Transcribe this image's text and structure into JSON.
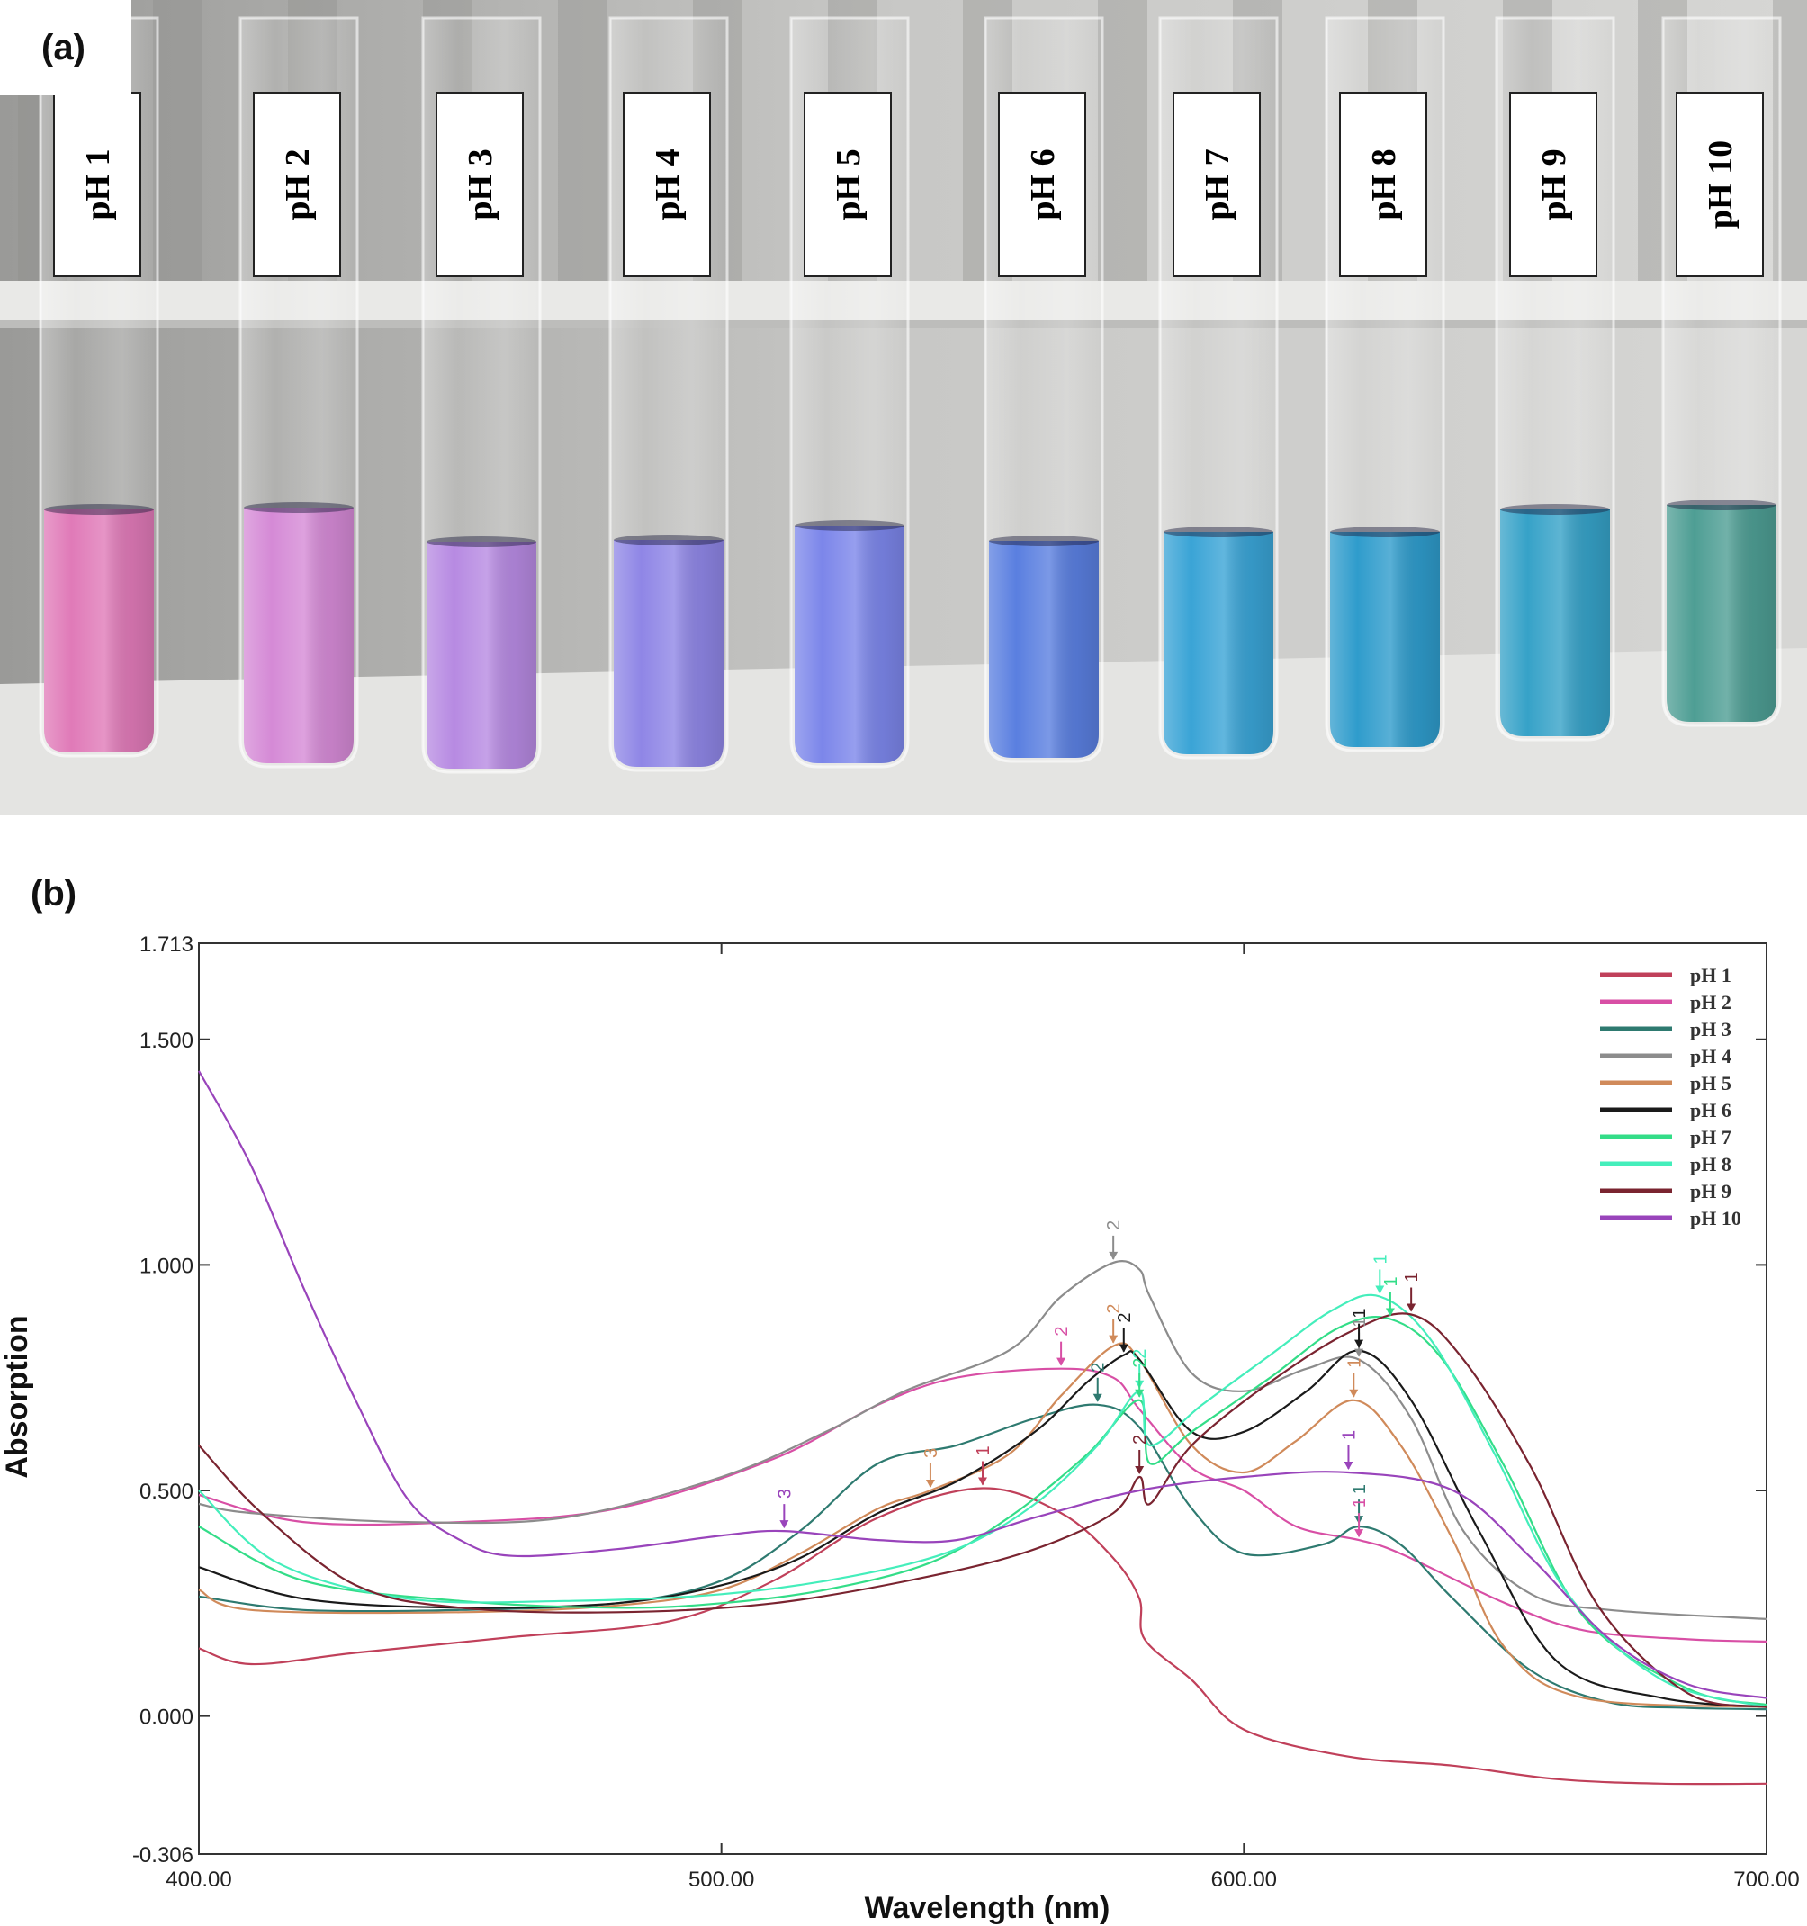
{
  "panel_a": {
    "label": "(a)",
    "tubes": [
      {
        "label": "pH 1",
        "color": "#e07ab8"
      },
      {
        "label": "pH 2",
        "color": "#d58ad6"
      },
      {
        "label": "pH 3",
        "color": "#b78ae2"
      },
      {
        "label": "pH 4",
        "color": "#8f86e6"
      },
      {
        "label": "pH 5",
        "color": "#7c86ea"
      },
      {
        "label": "pH 6",
        "color": "#5a7fe0"
      },
      {
        "label": "pH 7",
        "color": "#3aa4d6"
      },
      {
        "label": "pH 8",
        "color": "#2f9ccc"
      },
      {
        "label": "pH 9",
        "color": "#36a2c8"
      },
      {
        "label": "pH 10",
        "color": "#4e9e94"
      }
    ]
  },
  "panel_b": {
    "label": "(b)"
  },
  "chart_data": {
    "type": "line",
    "title": "",
    "xlabel": "Wavelength (nm)",
    "ylabel": "Absorption",
    "xlim": [
      400,
      700
    ],
    "ylim": [
      -0.306,
      1.713
    ],
    "xticks": [
      "400.00",
      "500.00",
      "600.00",
      "700.00"
    ],
    "xtick_values": [
      400,
      500,
      600,
      700
    ],
    "yticks": [
      "-0.306",
      "0.000",
      "0.500",
      "1.000",
      "1.500",
      "1.713"
    ],
    "ytick_values": [
      -0.306,
      0,
      0.5,
      1.0,
      1.5,
      1.713
    ],
    "legend_position": "top-right",
    "series": [
      {
        "name": "pH 1",
        "color": "#c0405a",
        "points": [
          [
            400,
            0.15
          ],
          [
            410,
            0.115
          ],
          [
            430,
            0.14
          ],
          [
            460,
            0.175
          ],
          [
            490,
            0.21
          ],
          [
            510,
            0.3
          ],
          [
            530,
            0.44
          ],
          [
            550,
            0.505
          ],
          [
            565,
            0.45
          ],
          [
            575,
            0.35
          ],
          [
            580,
            0.26
          ],
          [
            581,
            0.17
          ],
          [
            590,
            0.08
          ],
          [
            600,
            -0.03
          ],
          [
            620,
            -0.09
          ],
          [
            640,
            -0.11
          ],
          [
            660,
            -0.14
          ],
          [
            680,
            -0.15
          ],
          [
            700,
            -0.15
          ]
        ]
      },
      {
        "name": "pH 2",
        "color": "#d84fa5",
        "points": [
          [
            400,
            0.49
          ],
          [
            420,
            0.43
          ],
          [
            450,
            0.43
          ],
          [
            480,
            0.46
          ],
          [
            510,
            0.57
          ],
          [
            530,
            0.69
          ],
          [
            545,
            0.75
          ],
          [
            565,
            0.77
          ],
          [
            575,
            0.75
          ],
          [
            580,
            0.68
          ],
          [
            590,
            0.55
          ],
          [
            600,
            0.5
          ],
          [
            610,
            0.42
          ],
          [
            622,
            0.39
          ],
          [
            630,
            0.36
          ],
          [
            650,
            0.25
          ],
          [
            665,
            0.19
          ],
          [
            685,
            0.17
          ],
          [
            700,
            0.165
          ]
        ]
      },
      {
        "name": "pH 3",
        "color": "#2e7a70",
        "points": [
          [
            400,
            0.265
          ],
          [
            420,
            0.235
          ],
          [
            450,
            0.235
          ],
          [
            480,
            0.25
          ],
          [
            500,
            0.3
          ],
          [
            515,
            0.41
          ],
          [
            530,
            0.56
          ],
          [
            545,
            0.6
          ],
          [
            560,
            0.66
          ],
          [
            572,
            0.69
          ],
          [
            580,
            0.64
          ],
          [
            590,
            0.46
          ],
          [
            600,
            0.36
          ],
          [
            615,
            0.38
          ],
          [
            622,
            0.42
          ],
          [
            630,
            0.38
          ],
          [
            640,
            0.26
          ],
          [
            655,
            0.1
          ],
          [
            670,
            0.03
          ],
          [
            685,
            0.018
          ],
          [
            700,
            0.015
          ]
        ]
      },
      {
        "name": "pH 4",
        "color": "#8c8c8c",
        "points": [
          [
            400,
            0.47
          ],
          [
            410,
            0.45
          ],
          [
            440,
            0.43
          ],
          [
            470,
            0.44
          ],
          [
            500,
            0.53
          ],
          [
            520,
            0.63
          ],
          [
            535,
            0.72
          ],
          [
            555,
            0.81
          ],
          [
            565,
            0.93
          ],
          [
            575,
            1.005
          ],
          [
            580,
            0.99
          ],
          [
            582,
            0.93
          ],
          [
            590,
            0.76
          ],
          [
            600,
            0.72
          ],
          [
            612,
            0.77
          ],
          [
            622,
            0.79
          ],
          [
            632,
            0.66
          ],
          [
            642,
            0.41
          ],
          [
            655,
            0.27
          ],
          [
            670,
            0.235
          ],
          [
            700,
            0.215
          ]
        ]
      },
      {
        "name": "pH 5",
        "color": "#d08a5a",
        "points": [
          [
            400,
            0.28
          ],
          [
            410,
            0.235
          ],
          [
            450,
            0.23
          ],
          [
            480,
            0.245
          ],
          [
            500,
            0.28
          ],
          [
            515,
            0.36
          ],
          [
            530,
            0.46
          ],
          [
            540,
            0.5
          ],
          [
            555,
            0.58
          ],
          [
            565,
            0.71
          ],
          [
            575,
            0.82
          ],
          [
            580,
            0.79
          ],
          [
            590,
            0.6
          ],
          [
            600,
            0.54
          ],
          [
            610,
            0.61
          ],
          [
            621,
            0.7
          ],
          [
            630,
            0.6
          ],
          [
            640,
            0.39
          ],
          [
            650,
            0.15
          ],
          [
            665,
            0.04
          ],
          [
            700,
            0.02
          ]
        ]
      },
      {
        "name": "pH 6",
        "color": "#1a1a1a",
        "points": [
          [
            400,
            0.33
          ],
          [
            420,
            0.26
          ],
          [
            450,
            0.24
          ],
          [
            480,
            0.25
          ],
          [
            500,
            0.29
          ],
          [
            515,
            0.35
          ],
          [
            530,
            0.45
          ],
          [
            545,
            0.52
          ],
          [
            560,
            0.63
          ],
          [
            570,
            0.74
          ],
          [
            577,
            0.8
          ],
          [
            580,
            0.79
          ],
          [
            590,
            0.63
          ],
          [
            600,
            0.63
          ],
          [
            612,
            0.72
          ],
          [
            622,
            0.81
          ],
          [
            632,
            0.7
          ],
          [
            645,
            0.41
          ],
          [
            660,
            0.12
          ],
          [
            680,
            0.04
          ],
          [
            700,
            0.02
          ]
        ]
      },
      {
        "name": "pH 7",
        "color": "#33dd88",
        "points": [
          [
            400,
            0.42
          ],
          [
            420,
            0.3
          ],
          [
            450,
            0.255
          ],
          [
            480,
            0.24
          ],
          [
            500,
            0.25
          ],
          [
            520,
            0.28
          ],
          [
            540,
            0.34
          ],
          [
            555,
            0.44
          ],
          [
            570,
            0.58
          ],
          [
            580,
            0.7
          ],
          [
            582,
            0.56
          ],
          [
            590,
            0.63
          ],
          [
            605,
            0.75
          ],
          [
            618,
            0.86
          ],
          [
            628,
            0.88
          ],
          [
            638,
            0.79
          ],
          [
            650,
            0.55
          ],
          [
            665,
            0.22
          ],
          [
            685,
            0.06
          ],
          [
            700,
            0.025
          ]
        ]
      },
      {
        "name": "pH 8",
        "color": "#44eebb",
        "points": [
          [
            400,
            0.5
          ],
          [
            415,
            0.34
          ],
          [
            440,
            0.26
          ],
          [
            470,
            0.255
          ],
          [
            500,
            0.27
          ],
          [
            525,
            0.31
          ],
          [
            545,
            0.37
          ],
          [
            560,
            0.47
          ],
          [
            572,
            0.6
          ],
          [
            580,
            0.72
          ],
          [
            582,
            0.6
          ],
          [
            592,
            0.69
          ],
          [
            605,
            0.8
          ],
          [
            617,
            0.9
          ],
          [
            626,
            0.93
          ],
          [
            636,
            0.83
          ],
          [
            648,
            0.58
          ],
          [
            662,
            0.27
          ],
          [
            680,
            0.08
          ],
          [
            700,
            0.02
          ]
        ]
      },
      {
        "name": "pH 9",
        "color": "#7a2430",
        "points": [
          [
            400,
            0.6
          ],
          [
            412,
            0.45
          ],
          [
            430,
            0.29
          ],
          [
            450,
            0.24
          ],
          [
            480,
            0.23
          ],
          [
            510,
            0.25
          ],
          [
            540,
            0.31
          ],
          [
            560,
            0.37
          ],
          [
            575,
            0.45
          ],
          [
            580,
            0.53
          ],
          [
            582,
            0.47
          ],
          [
            590,
            0.6
          ],
          [
            605,
            0.74
          ],
          [
            620,
            0.85
          ],
          [
            632,
            0.89
          ],
          [
            642,
            0.79
          ],
          [
            655,
            0.55
          ],
          [
            668,
            0.24
          ],
          [
            685,
            0.05
          ],
          [
            700,
            0.02
          ]
        ]
      },
      {
        "name": "pH 10",
        "color": "#9944bb",
        "points": [
          [
            400,
            1.43
          ],
          [
            410,
            1.22
          ],
          [
            420,
            0.95
          ],
          [
            430,
            0.7
          ],
          [
            440,
            0.48
          ],
          [
            450,
            0.39
          ],
          [
            460,
            0.355
          ],
          [
            480,
            0.37
          ],
          [
            500,
            0.4
          ],
          [
            512,
            0.41
          ],
          [
            530,
            0.39
          ],
          [
            545,
            0.39
          ],
          [
            560,
            0.44
          ],
          [
            580,
            0.5
          ],
          [
            600,
            0.53
          ],
          [
            620,
            0.54
          ],
          [
            640,
            0.5
          ],
          [
            655,
            0.35
          ],
          [
            670,
            0.17
          ],
          [
            685,
            0.07
          ],
          [
            700,
            0.04
          ]
        ]
      }
    ],
    "annotations": [
      {
        "text": "2",
        "x": 575,
        "y": 1.005,
        "color": "#8c8c8c"
      },
      {
        "text": "2",
        "x": 565,
        "y": 0.77,
        "color": "#d84fa5"
      },
      {
        "text": "2",
        "x": 577,
        "y": 0.8,
        "color": "#1a1a1a"
      },
      {
        "text": "2",
        "x": 575,
        "y": 0.82,
        "color": "#d08a5a"
      },
      {
        "text": "2",
        "x": 572,
        "y": 0.69,
        "color": "#2e7a70"
      },
      {
        "text": "2",
        "x": 580,
        "y": 0.72,
        "color": "#44eebb"
      },
      {
        "text": "2",
        "x": 580,
        "y": 0.7,
        "color": "#33dd88"
      },
      {
        "text": "2",
        "x": 580,
        "y": 0.53,
        "color": "#7a2430"
      },
      {
        "text": "3",
        "x": 512,
        "y": 0.41,
        "color": "#9944bb"
      },
      {
        "text": "3",
        "x": 540,
        "y": 0.5,
        "color": "#d08a5a"
      },
      {
        "text": "1",
        "x": 550,
        "y": 0.505,
        "color": "#c0405a"
      },
      {
        "text": "1",
        "x": 622,
        "y": 0.79,
        "color": "#8c8c8c"
      },
      {
        "text": "1",
        "x": 622,
        "y": 0.81,
        "color": "#1a1a1a"
      },
      {
        "text": "1",
        "x": 621,
        "y": 0.7,
        "color": "#d08a5a"
      },
      {
        "text": "1",
        "x": 620,
        "y": 0.54,
        "color": "#9944bb"
      },
      {
        "text": "1",
        "x": 622,
        "y": 0.42,
        "color": "#2e7a70"
      },
      {
        "text": "1",
        "x": 622,
        "y": 0.39,
        "color": "#d84fa5"
      },
      {
        "text": "1",
        "x": 626,
        "y": 0.93,
        "color": "#44eebb"
      },
      {
        "text": "1",
        "x": 628,
        "y": 0.88,
        "color": "#33dd88"
      },
      {
        "text": "1",
        "x": 632,
        "y": 0.89,
        "color": "#7a2430"
      }
    ]
  }
}
